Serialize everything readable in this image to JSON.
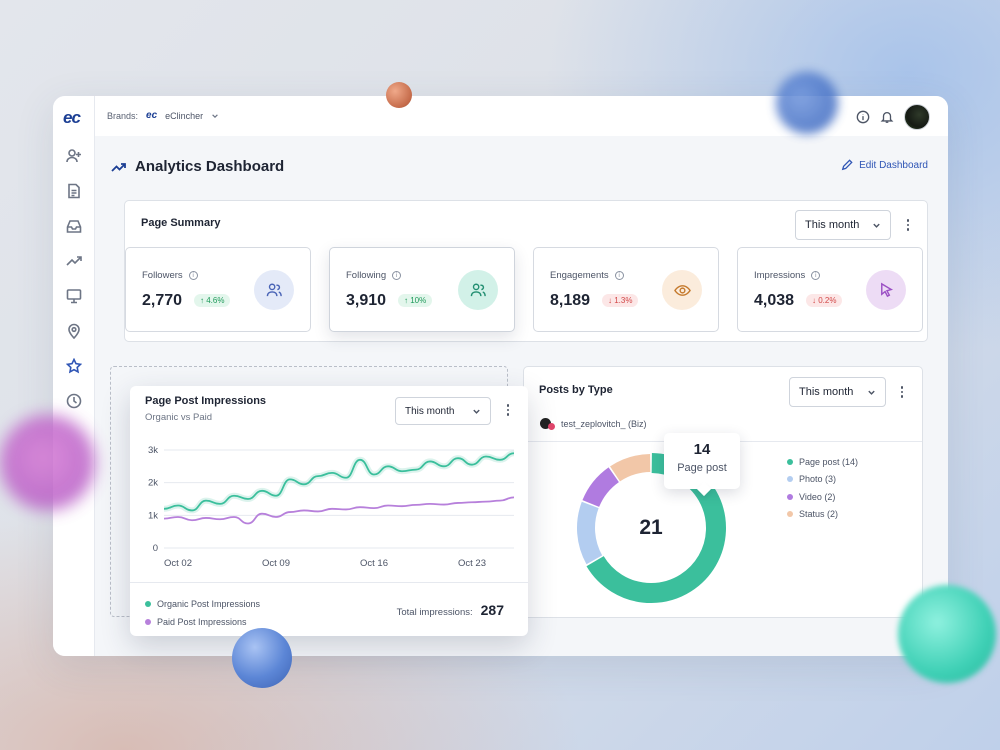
{
  "brands": {
    "label": "Brands:",
    "logo": "ec",
    "name": "eClincher"
  },
  "app": {
    "logo": "ec"
  },
  "sidebar": {
    "items": [
      {
        "icon": "add-user-icon"
      },
      {
        "icon": "document-icon"
      },
      {
        "icon": "inbox-icon"
      },
      {
        "icon": "trend-icon"
      },
      {
        "icon": "monitor-icon"
      },
      {
        "icon": "location-icon"
      },
      {
        "icon": "star-icon"
      },
      {
        "icon": "clock-icon"
      }
    ]
  },
  "header": {
    "title": "Analytics Dashboard",
    "edit_label": "Edit Dashboard"
  },
  "page_summary": {
    "title": "Page Summary",
    "period": "This month",
    "metrics": [
      {
        "label": "Followers",
        "value": "2,770",
        "delta": "4.6%",
        "direction": "up",
        "icon": "users-icon",
        "icon_bg": "#e4eaf8",
        "icon_color": "#4a64b6"
      },
      {
        "label": "Following",
        "value": "3,910",
        "delta": "10%",
        "direction": "up",
        "icon": "users-icon",
        "icon_bg": "#d2f1e8",
        "icon_color": "#238f72"
      },
      {
        "label": "Engagements",
        "value": "8,189",
        "delta": "1.3%",
        "direction": "down",
        "icon": "eye-icon",
        "icon_bg": "#fbecdc",
        "icon_color": "#c57a2d"
      },
      {
        "label": "Impressions",
        "value": "4,038",
        "delta": "0.2%",
        "direction": "down",
        "icon": "cursor-icon",
        "icon_bg": "#eddcf5",
        "icon_color": "#9b4fc4"
      }
    ]
  },
  "post_impressions": {
    "title": "Page Post Impressions",
    "subtitle": "Organic vs Paid",
    "period": "This month",
    "total_label": "Total impressions:",
    "total_value": "287"
  },
  "posts_by_type": {
    "title": "Posts by Type",
    "period": "This month",
    "account": "test_zeplovitch_ (Biz)",
    "total": "21",
    "tooltip": {
      "value": "14",
      "label": "Page post"
    }
  },
  "chart_data": [
    {
      "type": "line",
      "title": "Page Post Impressions",
      "subtitle": "Organic vs Paid",
      "x_tick_labels": [
        "Oct 02",
        "Oct 09",
        "Oct 16",
        "Oct 23"
      ],
      "y_tick_labels": [
        "0",
        "1k",
        "2k",
        "3k"
      ],
      "ylim": [
        0,
        3000
      ],
      "grid": true,
      "x": [
        "Oct 01",
        "Oct 02",
        "Oct 03",
        "Oct 04",
        "Oct 05",
        "Oct 06",
        "Oct 07",
        "Oct 08",
        "Oct 09",
        "Oct 10",
        "Oct 11",
        "Oct 12",
        "Oct 13",
        "Oct 14",
        "Oct 15",
        "Oct 16",
        "Oct 17",
        "Oct 18",
        "Oct 19",
        "Oct 20",
        "Oct 21",
        "Oct 22",
        "Oct 23",
        "Oct 24",
        "Oct 25",
        "Oct 26"
      ],
      "series": [
        {
          "name": "Organic Post Impressions",
          "color": "#3bbf9c",
          "values": [
            1200,
            1300,
            1150,
            1450,
            1350,
            1600,
            1500,
            1750,
            1600,
            2100,
            1950,
            2200,
            2300,
            2150,
            2700,
            2250,
            2500,
            2350,
            2400,
            2650,
            2500,
            2750,
            2550,
            2800,
            2700,
            2900
          ]
        },
        {
          "name": "Paid Post Impressions",
          "color": "#b780db",
          "values": [
            900,
            950,
            850,
            920,
            880,
            950,
            750,
            1050,
            950,
            1100,
            1150,
            1120,
            1200,
            1180,
            1250,
            1220,
            1300,
            1280,
            1320,
            1350,
            1330,
            1380,
            1400,
            1420,
            1450,
            1550
          ]
        }
      ],
      "legend": "bottom-left"
    },
    {
      "type": "pie",
      "title": "Posts by Type",
      "categories": [
        "Page post",
        "Photo",
        "Video",
        "Status"
      ],
      "values": [
        14,
        3,
        2,
        2
      ],
      "colors": [
        "#3bbf9c",
        "#b3cdf0",
        "#b07be0",
        "#f2c7a8"
      ],
      "legend_labels": [
        "Page post (14)",
        "Photo (3)",
        "Video (2)",
        "Status (2)"
      ],
      "center_label": "21",
      "legend": "right"
    }
  ]
}
